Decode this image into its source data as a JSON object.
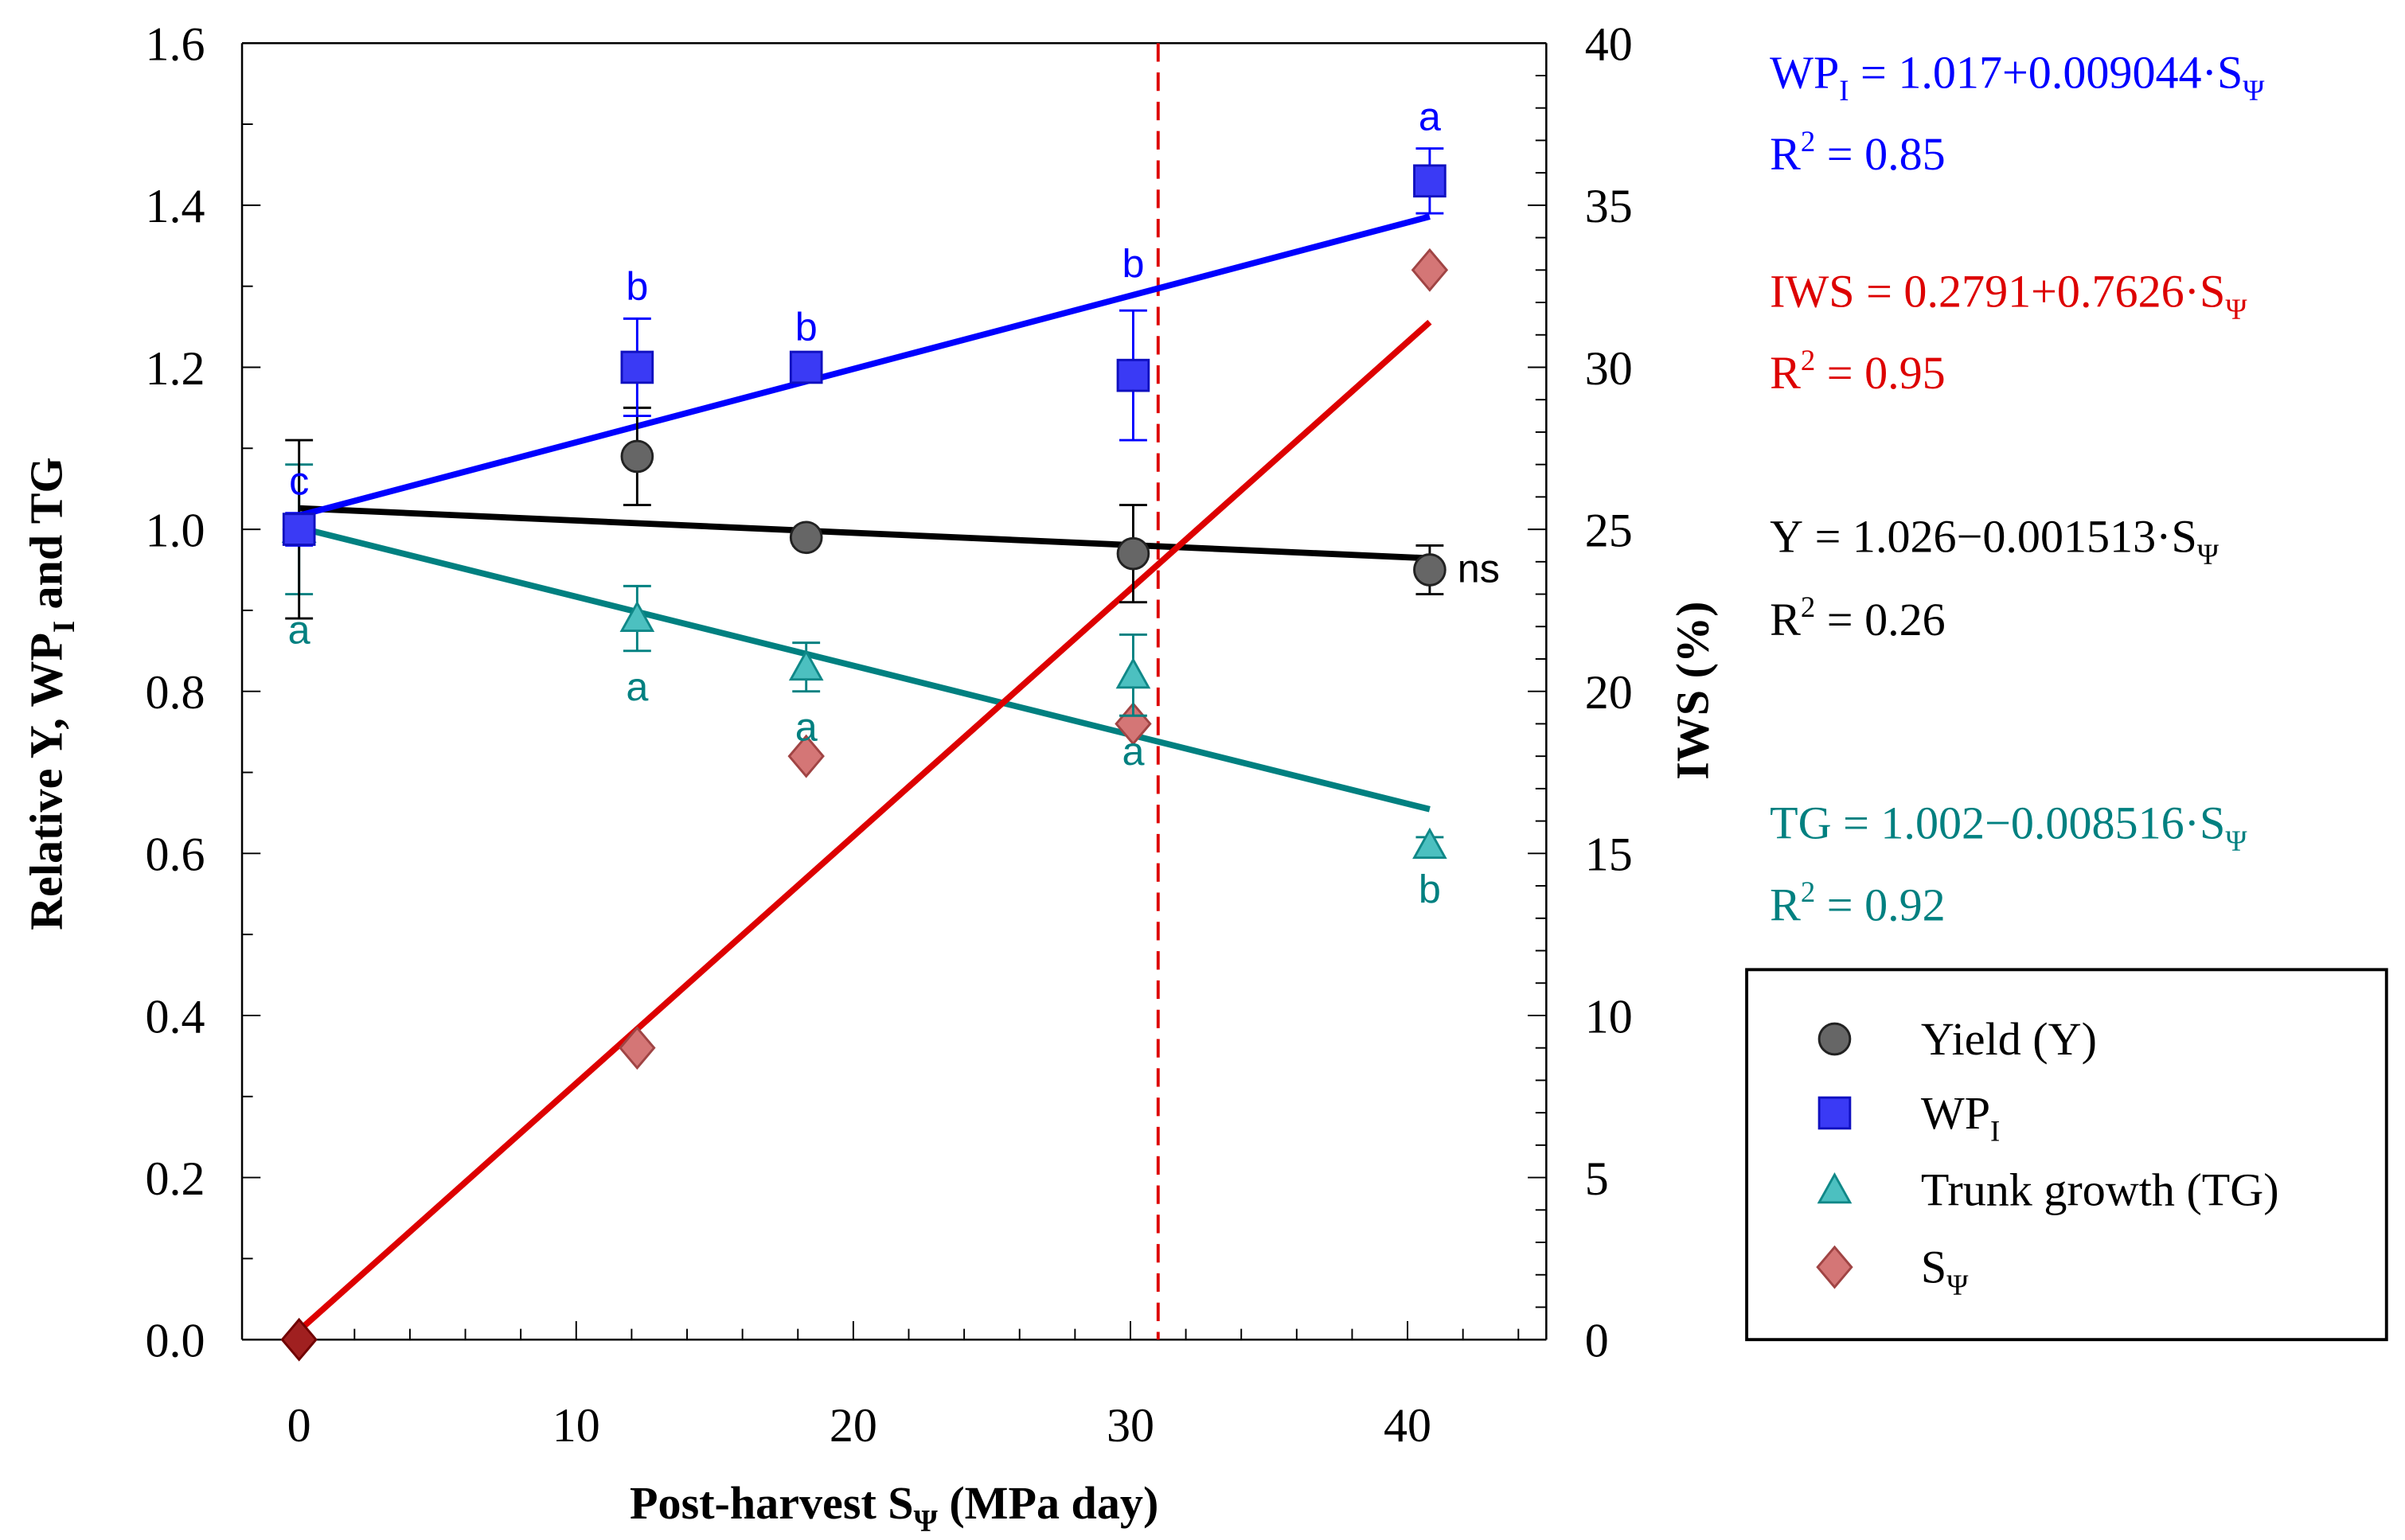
{
  "chart_data": {
    "type": "scatter",
    "xlabel": {
      "main": "Post-harvest S",
      "sub": "Ψ",
      "tail": " (MPa day)"
    },
    "ylabel_left": {
      "main": "Relative Y, WP",
      "sub": "I",
      "tail": " and TG"
    },
    "ylabel_right": "IWS (%)",
    "xlim": [
      -2,
      45
    ],
    "ylim_left": [
      0,
      1.6
    ],
    "ylim_right": [
      0,
      40
    ],
    "x_ticks": [
      "0",
      "10",
      "20",
      "30",
      "40"
    ],
    "y_left_ticks": [
      "0.0",
      "0.2",
      "0.4",
      "0.6",
      "0.8",
      "1.0",
      "1.2",
      "1.4",
      "1.6"
    ],
    "y_right_ticks": [
      "0",
      "5",
      "10",
      "15",
      "20",
      "25",
      "30",
      "35",
      "40"
    ],
    "threshold_x": 31,
    "colors": {
      "yield": "#555555",
      "wp": "#3a3af5",
      "tg": "#38b0b0",
      "tg_text": "#008080",
      "s": "#cd6b6b",
      "iws_line": "#dd0000",
      "wp_line": "#0000ff",
      "black": "#000000"
    },
    "series": [
      {
        "name": "Yield (Y)",
        "key": "yield",
        "axis": "left",
        "marker": "circle",
        "x": [
          0,
          12.2,
          18.3,
          30.1,
          40.8
        ],
        "y": [
          1.0,
          1.09,
          0.99,
          0.97,
          0.95
        ],
        "err": [
          0.11,
          0.06,
          0.01,
          0.06,
          0.03
        ],
        "letters": [
          "",
          "",
          "",
          "",
          "ns"
        ],
        "fit": {
          "intercept": 1.026,
          "slope": -0.001513,
          "x": [
            0,
            40.8
          ]
        }
      },
      {
        "name": "WP",
        "sub": "I",
        "key": "wp",
        "axis": "left",
        "marker": "square",
        "x": [
          0,
          12.2,
          18.3,
          30.1,
          40.8
        ],
        "y": [
          1.0,
          1.2,
          1.2,
          1.19,
          1.43
        ],
        "err": [
          0.02,
          0.06,
          0.01,
          0.08,
          0.04
        ],
        "letters": [
          "c",
          "b",
          "b",
          "b",
          "a"
        ],
        "fit": {
          "intercept": 1.017,
          "slope": 0.009044,
          "x": [
            0,
            40.8
          ]
        }
      },
      {
        "name": "Trunk growth (TG)",
        "key": "tg",
        "axis": "left",
        "marker": "triangle",
        "x": [
          0,
          12.2,
          18.3,
          30.1,
          40.8
        ],
        "y": [
          1.0,
          0.89,
          0.83,
          0.82,
          0.61
        ],
        "err": [
          0.08,
          0.04,
          0.03,
          0.05,
          0.01
        ],
        "letters": [
          "a",
          "a",
          "a",
          "a",
          "b"
        ],
        "fit": {
          "intercept": 1.002,
          "slope": -0.008516,
          "x": [
            0,
            40.8
          ]
        }
      },
      {
        "name": "S",
        "sub": "Ψ",
        "key": "s",
        "axis": "right",
        "marker": "diamond",
        "x": [
          0,
          12.2,
          18.3,
          30.1,
          40.8
        ],
        "y": [
          0,
          9,
          18,
          19,
          33
        ],
        "fit": {
          "intercept": 0.2791,
          "slope": 0.7626,
          "x": [
            0,
            40.8
          ]
        }
      }
    ],
    "equations": [
      {
        "key": "wp",
        "lhs": "WP",
        "lhs_sub": "I",
        "rhs": " = 1.017+0.009044·S",
        "rhs_sub": "Ψ",
        "r2": " = 0.85"
      },
      {
        "key": "iws",
        "lhs": "IWS",
        "lhs_sub": "",
        "rhs": " = 0.2791+0.7626·S",
        "rhs_sub": "Ψ",
        "r2": " = 0.95"
      },
      {
        "key": "yield",
        "lhs": "Y",
        "lhs_sub": "",
        "rhs": " = 1.026−0.001513·S",
        "rhs_sub": "Ψ",
        "r2": " = 0.26"
      },
      {
        "key": "tg",
        "lhs": "TG",
        "lhs_sub": "",
        "rhs": " = 1.002−0.008516·S",
        "rhs_sub": "Ψ",
        "r2": " = 0.92"
      }
    ],
    "r2_label": "R",
    "legend_position": "right"
  }
}
